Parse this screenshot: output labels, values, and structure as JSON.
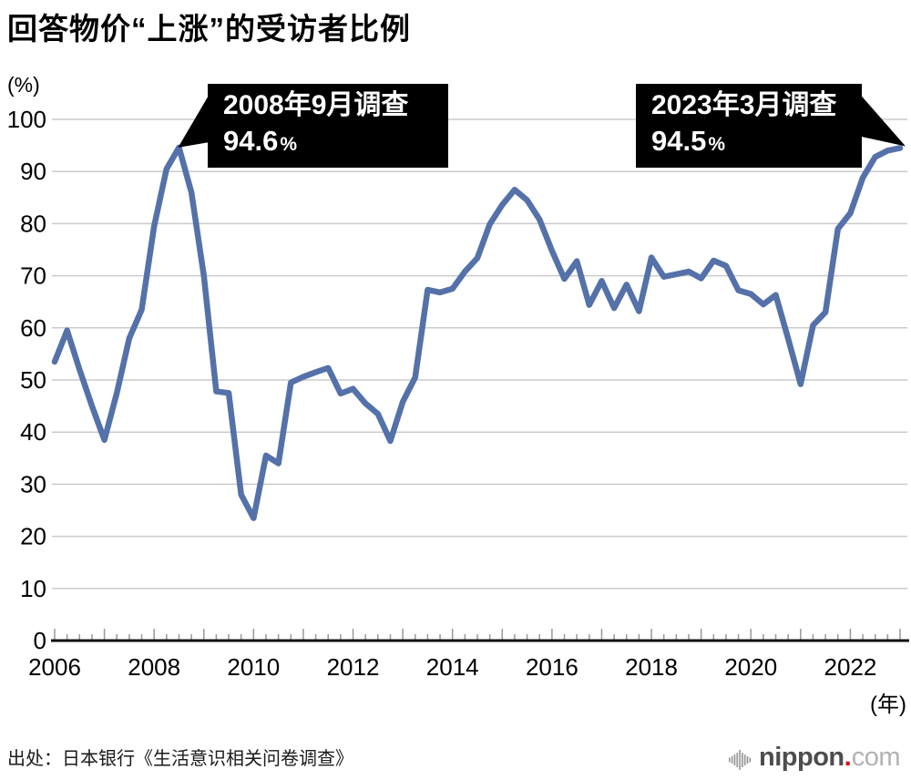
{
  "page": {
    "title": "回答物价“上涨”的受访者比例"
  },
  "chart_data": {
    "type": "line",
    "title": "回答物价“上涨”的受访者比例",
    "line_color": "#5571A9",
    "grid": true,
    "y_axis": {
      "unit": "(%)",
      "range": [
        0,
        100
      ],
      "ticks": [
        0,
        10,
        20,
        30,
        40,
        50,
        60,
        70,
        80,
        90,
        100
      ]
    },
    "x_axis": {
      "unit": "(年)",
      "tick_labels": [
        "2006",
        "2008",
        "2010",
        "2012",
        "2014",
        "2016",
        "2018",
        "2020",
        "2022"
      ],
      "minor_ticks": "quarterly"
    },
    "series": [
      {
        "name": "回答物价上涨的受访者比例",
        "x": [
          "2006-03",
          "2006-06",
          "2006-09",
          "2006-12",
          "2007-03",
          "2007-06",
          "2007-09",
          "2007-12",
          "2008-03",
          "2008-06",
          "2008-09",
          "2008-12",
          "2009-03",
          "2009-06",
          "2009-09",
          "2009-12",
          "2010-03",
          "2010-06",
          "2010-09",
          "2010-12",
          "2011-03",
          "2011-06",
          "2011-09",
          "2011-12",
          "2012-03",
          "2012-06",
          "2012-09",
          "2012-12",
          "2013-03",
          "2013-06",
          "2013-09",
          "2013-12",
          "2014-03",
          "2014-06",
          "2014-09",
          "2014-12",
          "2015-03",
          "2015-06",
          "2015-09",
          "2015-12",
          "2016-03",
          "2016-06",
          "2016-09",
          "2016-12",
          "2017-03",
          "2017-06",
          "2017-09",
          "2017-12",
          "2018-03",
          "2018-06",
          "2018-09",
          "2018-12",
          "2019-03",
          "2019-06",
          "2019-09",
          "2019-12",
          "2020-03",
          "2020-06",
          "2020-09",
          "2020-12",
          "2021-03",
          "2021-06",
          "2021-09",
          "2021-12",
          "2022-03",
          "2022-06",
          "2022-09",
          "2022-12",
          "2023-03"
        ],
        "values": [
          53.5,
          59.5,
          52.0,
          45.0,
          38.5,
          47.5,
          58.0,
          63.5,
          79.5,
          90.5,
          94.6,
          86.0,
          70.0,
          47.8,
          47.5,
          28.0,
          23.5,
          35.5,
          34.0,
          49.5,
          50.6,
          51.5,
          52.3,
          47.4,
          48.3,
          45.5,
          43.5,
          38.3,
          45.8,
          50.5,
          67.3,
          66.8,
          67.5,
          70.8,
          73.4,
          79.9,
          83.6,
          86.5,
          84.5,
          80.8,
          74.8,
          69.4,
          72.8,
          64.4,
          69.0,
          63.8,
          68.3,
          63.2,
          73.5,
          69.8,
          70.3,
          70.8,
          69.5,
          72.9,
          71.9,
          67.2,
          66.5,
          64.5,
          66.3,
          57.9,
          49.2,
          60.5,
          63.0,
          79.0,
          82.0,
          88.8,
          92.8,
          94.0,
          94.5
        ]
      }
    ],
    "annotations": [
      {
        "label": "2008年9月调查",
        "value": "94.6",
        "unit": "%",
        "x": "2008-09",
        "y": 94.6
      },
      {
        "label": "2023年3月调查",
        "value": "94.5",
        "unit": "%",
        "x": "2023-03",
        "y": 94.5
      }
    ]
  },
  "footer": {
    "source": "出处：日本银行《生活意识相关问卷调查》"
  },
  "logo": {
    "name": "nippon",
    "dot": ".",
    "tld": "com",
    "dot_color": "#e60012"
  }
}
